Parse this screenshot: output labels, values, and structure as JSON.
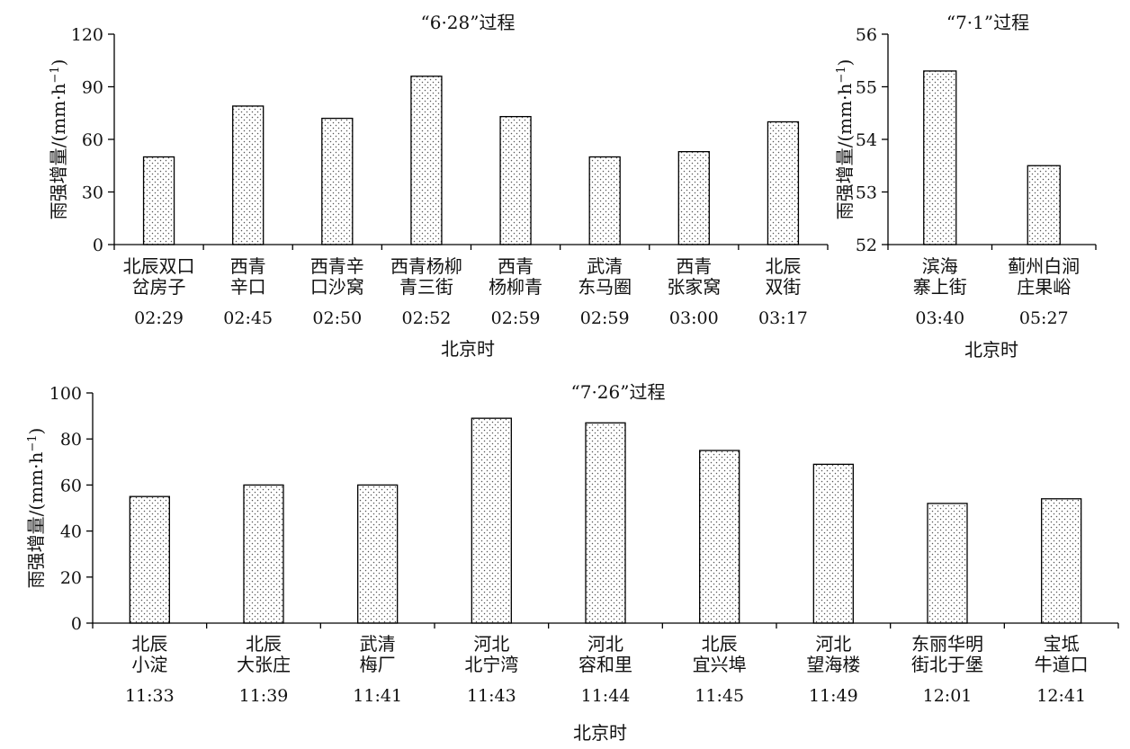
{
  "chart_data": [
    {
      "type": "bar",
      "title": "“6·28”过程",
      "ylabel": "雨强增量/(mm·h",
      "ylabel_exp": "−1",
      "ylabel_close": ")",
      "xlabel": "北京时",
      "ylim": [
        0,
        120
      ],
      "yticks": [
        "0",
        "30",
        "60",
        "90",
        "120"
      ],
      "categories": [
        {
          "line1": "北辰双口",
          "line2": "岔房子",
          "time": "02:29"
        },
        {
          "line1": "西青",
          "line2": "辛口",
          "time": "02:45"
        },
        {
          "line1": "西青辛",
          "line2": "口沙窝",
          "time": "02:50"
        },
        {
          "line1": "西青杨柳",
          "line2": "青三街",
          "time": "02:52"
        },
        {
          "line1": "西青",
          "line2": "杨柳青",
          "time": "02:59"
        },
        {
          "line1": "武清",
          "line2": "东马圈",
          "time": "02:59"
        },
        {
          "line1": "西青",
          "line2": "张家窝",
          "time": "03:00"
        },
        {
          "line1": "北辰",
          "line2": "双街",
          "time": "03:17"
        }
      ],
      "values": [
        50,
        79,
        72,
        96,
        73,
        50,
        53,
        70
      ]
    },
    {
      "type": "bar",
      "title": "“7·1”过程",
      "ylabel": "雨强增量/(mm·h",
      "ylabel_exp": "−1",
      "ylabel_close": ")",
      "xlabel": "北京时",
      "ylim": [
        52,
        56
      ],
      "yticks": [
        "52",
        "53",
        "54",
        "55",
        "56"
      ],
      "categories": [
        {
          "line1": "滨海",
          "line2": "寨上街",
          "time": "03:40"
        },
        {
          "line1": "蓟州白涧",
          "line2": "庄果峪",
          "time": "05:27"
        }
      ],
      "values": [
        55.3,
        53.5
      ]
    },
    {
      "type": "bar",
      "title": "“7·26”过程",
      "ylabel": "雨强增量/(mm·h",
      "ylabel_exp": "−1",
      "ylabel_close": ")",
      "xlabel": "北京时",
      "ylim": [
        0,
        100
      ],
      "yticks": [
        "0",
        "20",
        "40",
        "60",
        "80",
        "100"
      ],
      "categories": [
        {
          "line1": "北辰",
          "line2": "小淀",
          "time": "11:33"
        },
        {
          "line1": "北辰",
          "line2": "大张庄",
          "time": "11:39"
        },
        {
          "line1": "武清",
          "line2": "梅厂",
          "time": "11:41"
        },
        {
          "line1": "河北",
          "line2": "北宁湾",
          "time": "11:43"
        },
        {
          "line1": "河北",
          "line2": "容和里",
          "time": "11:44"
        },
        {
          "line1": "北辰",
          "line2": "宜兴埠",
          "time": "11:45"
        },
        {
          "line1": "河北",
          "line2": "望海楼",
          "time": "11:49"
        },
        {
          "line1": "东丽华明",
          "line2": "街北于堡",
          "time": "12:01"
        },
        {
          "line1": "宝坻",
          "line2": "牛道口",
          "time": "12:41"
        }
      ],
      "values": [
        55,
        60,
        60,
        89,
        87,
        75,
        69,
        52,
        54
      ]
    }
  ]
}
